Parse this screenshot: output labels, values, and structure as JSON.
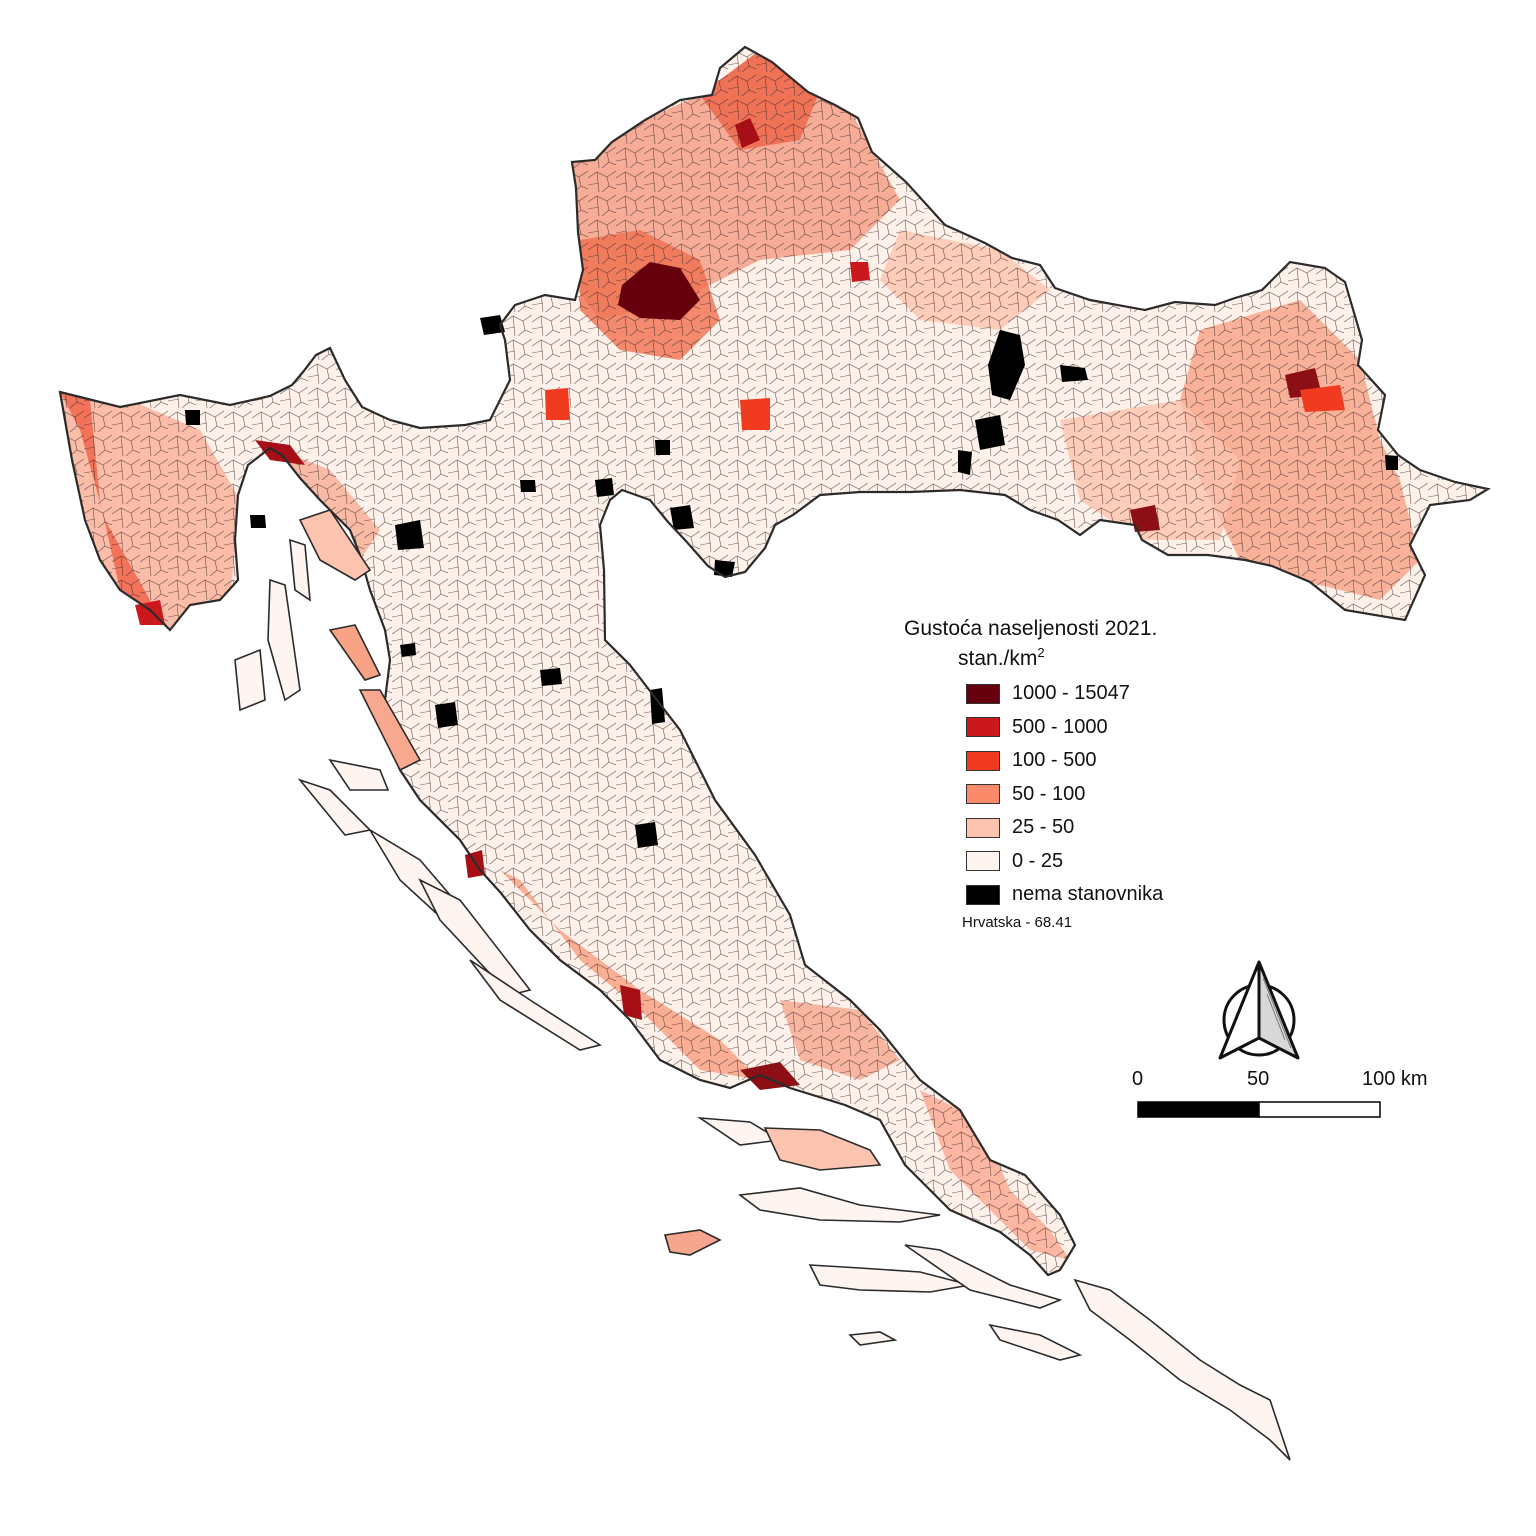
{
  "legend": {
    "title": "Gustoća naseljenosti 2021.",
    "units": "stan./km",
    "units_sup": "2",
    "classes": [
      {
        "label": "1000 - 15047",
        "color": "#67000d"
      },
      {
        "label": "500 - 1000",
        "color": "#cb181d"
      },
      {
        "label": "100 - 500",
        "color": "#f03b20"
      },
      {
        "label": "50 - 100",
        "color": "#fb8a6a"
      },
      {
        "label": "25 - 50",
        "color": "#fcc4ae"
      },
      {
        "label": "0 - 25",
        "color": "#fff5f0"
      },
      {
        "label": "nema stanovnika",
        "color": "#000000"
      }
    ],
    "note": "Hrvatska - 68.41"
  },
  "scale_bar": {
    "labels": [
      "0",
      "50",
      "100 km"
    ]
  },
  "north_arrow": {
    "icon": "north-arrow-icon"
  }
}
